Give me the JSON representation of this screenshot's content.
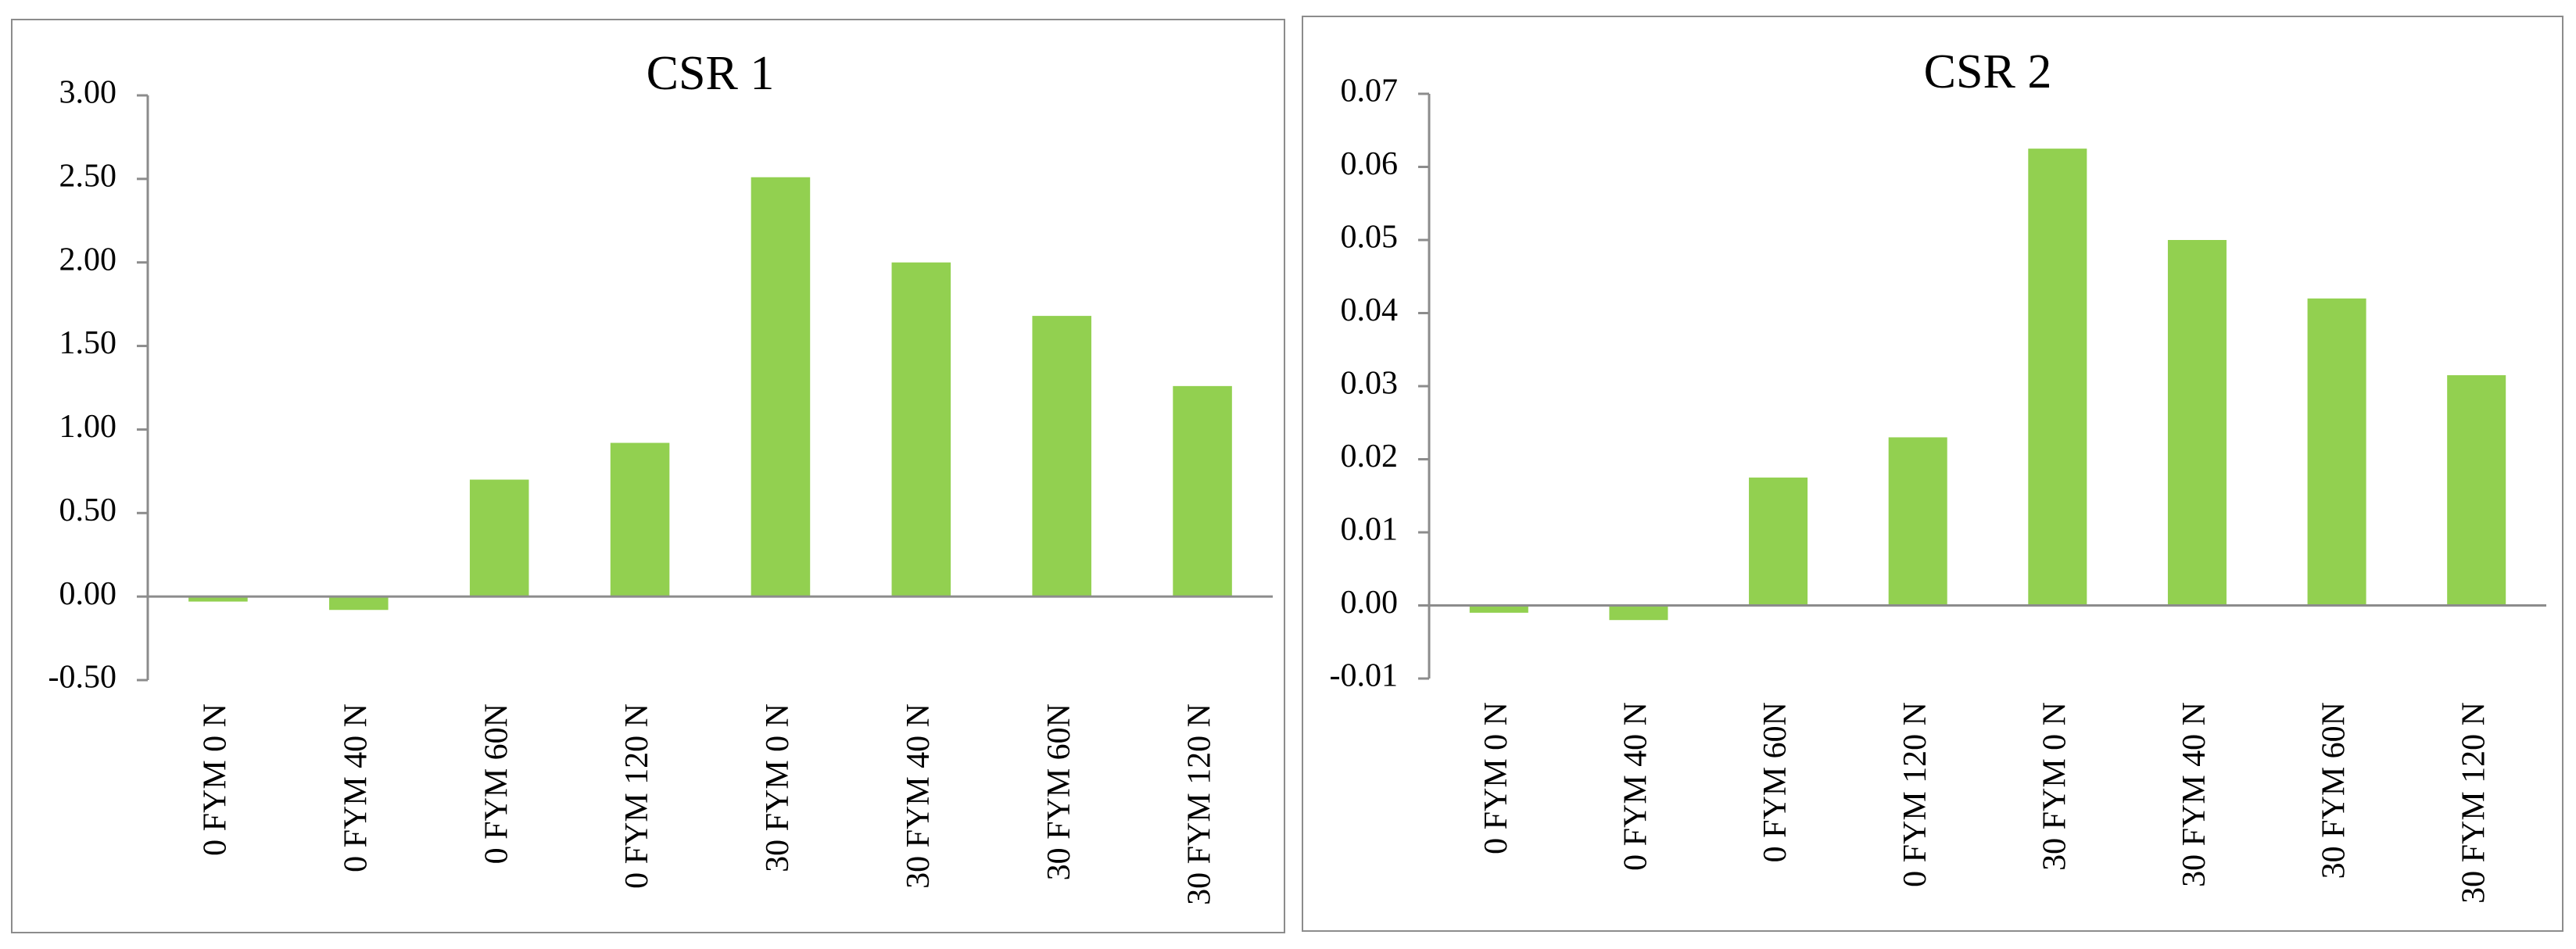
{
  "chart_data": [
    {
      "type": "bar",
      "title": "CSR 1",
      "categories": [
        "0 FYM 0 N",
        "0 FYM 40 N",
        "0 FYM 60N",
        "0 FYM 120 N",
        "30 FYM 0 N",
        "30 FYM 40 N",
        "30 FYM 60N",
        "30 FYM 120 N"
      ],
      "values": [
        -0.03,
        -0.08,
        0.7,
        0.92,
        2.51,
        2.0,
        1.68,
        1.26
      ],
      "color": "#92d050",
      "ylim": [
        -0.5,
        3
      ],
      "yticks": [
        {
          "value": -0.5,
          "label": "-0.50"
        },
        {
          "value": 0,
          "label": "0.00"
        },
        {
          "value": 0.5,
          "label": "0.50"
        },
        {
          "value": 1,
          "label": "1.00"
        },
        {
          "value": 1.5,
          "label": "1.50"
        },
        {
          "value": 2,
          "label": "2.00"
        },
        {
          "value": 2.5,
          "label": "2.50"
        },
        {
          "value": 3,
          "label": "3.00"
        }
      ]
    },
    {
      "type": "bar",
      "title": "CSR 2",
      "categories": [
        "0 FYM 0 N",
        "0 FYM 40 N",
        "0 FYM 60N",
        "0 FYM 120 N",
        "30 FYM 0 N",
        "30 FYM 40 N",
        "30 FYM 60N",
        "30 FYM 120 N"
      ],
      "values": [
        -0.001,
        -0.002,
        0.0175,
        0.023,
        0.0625,
        0.05,
        0.042,
        0.0315
      ],
      "color": "#92d050",
      "ylim": [
        -0.01,
        0.07
      ],
      "yticks": [
        -0.01,
        {
          "value": 0,
          "label": "0.00"
        },
        0.01,
        0.02,
        0.03,
        0.04,
        0.05,
        0.06,
        0.07
      ]
    }
  ]
}
